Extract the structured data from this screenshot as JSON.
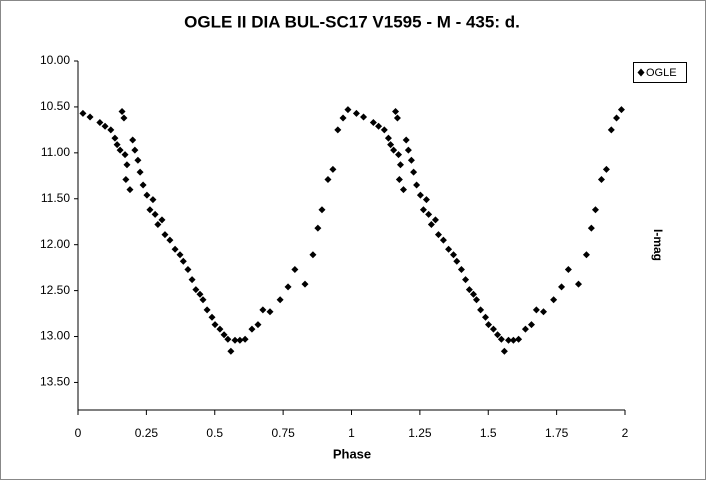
{
  "chart_data": {
    "type": "scatter",
    "title": "OGLE II DIA BUL-SC17 V1595 - M - 435: d.",
    "xlabel": "Phase",
    "ylabel": "I-mag",
    "xlim": [
      0,
      2
    ],
    "xticks": [
      0,
      0.25,
      0.5,
      0.75,
      1,
      1.25,
      1.5,
      1.75,
      2
    ],
    "ylim": [
      10,
      13.8
    ],
    "y_reversed": true,
    "yticks": [
      {
        "value": 10,
        "label": "10.00"
      },
      {
        "value": 10.5,
        "label": "10.50"
      },
      {
        "value": 11,
        "label": "11.00"
      },
      {
        "value": 11.5,
        "label": "11.50"
      },
      {
        "value": 12,
        "label": "12.00"
      },
      {
        "value": 12.5,
        "label": "12.50"
      },
      {
        "value": 13,
        "label": "13.00"
      },
      {
        "value": 13.5,
        "label": "13.50"
      }
    ],
    "legend": "top-right",
    "x": [
      0.018,
      0.044,
      0.08,
      0.099,
      0.12,
      0.135,
      0.143,
      0.154,
      0.161,
      0.168,
      0.172,
      0.179,
      0.175,
      0.19,
      0.2,
      0.208,
      0.219,
      0.227,
      0.238,
      0.252,
      0.263,
      0.274,
      0.282,
      0.292,
      0.307,
      0.318,
      0.336,
      0.355,
      0.373,
      0.385,
      0.402,
      0.417,
      0.431,
      0.446,
      0.457,
      0.472,
      0.49,
      0.501,
      0.519,
      0.534,
      0.548,
      0.559,
      0.574,
      0.592,
      0.611,
      0.636,
      0.658,
      0.676,
      0.702,
      0.739,
      0.768,
      0.793,
      0.83,
      0.859,
      0.877,
      0.892,
      0.914,
      0.932,
      0.95,
      0.969,
      0.987,
      1.018,
      1.044,
      1.08,
      1.099,
      1.12,
      1.135,
      1.143,
      1.154,
      1.161,
      1.168,
      1.172,
      1.179,
      1.175,
      1.19,
      1.2,
      1.208,
      1.219,
      1.227,
      1.238,
      1.252,
      1.263,
      1.274,
      1.282,
      1.292,
      1.307,
      1.318,
      1.336,
      1.355,
      1.373,
      1.385,
      1.402,
      1.417,
      1.431,
      1.446,
      1.457,
      1.472,
      1.49,
      1.501,
      1.519,
      1.534,
      1.548,
      1.559,
      1.574,
      1.592,
      1.611,
      1.636,
      1.658,
      1.676,
      1.702,
      1.739,
      1.768,
      1.793,
      1.83,
      1.859,
      1.877,
      1.892,
      1.914,
      1.932,
      1.95,
      1.969,
      1.987
    ],
    "series": [
      {
        "name": "OGLE",
        "color": "#000000",
        "values": [
          10.57,
          10.61,
          10.67,
          10.71,
          10.75,
          10.84,
          10.91,
          10.97,
          10.55,
          10.62,
          11.02,
          11.13,
          11.29,
          11.4,
          10.86,
          10.97,
          11.08,
          11.21,
          11.35,
          11.46,
          11.62,
          11.51,
          11.67,
          11.78,
          11.73,
          11.89,
          11.95,
          12.05,
          12.11,
          12.18,
          12.27,
          12.38,
          12.49,
          12.54,
          12.6,
          12.71,
          12.79,
          12.87,
          12.92,
          12.98,
          13.03,
          13.16,
          13.04,
          13.04,
          13.03,
          12.92,
          12.87,
          12.71,
          12.73,
          12.6,
          12.46,
          12.27,
          12.43,
          12.11,
          11.82,
          11.62,
          11.29,
          11.18,
          10.75,
          10.62,
          10.53,
          10.57,
          10.61,
          10.67,
          10.71,
          10.75,
          10.84,
          10.91,
          10.97,
          10.55,
          10.62,
          11.02,
          11.13,
          11.29,
          11.4,
          10.86,
          10.97,
          11.08,
          11.21,
          11.35,
          11.46,
          11.62,
          11.51,
          11.67,
          11.78,
          11.73,
          11.89,
          11.95,
          12.05,
          12.11,
          12.18,
          12.27,
          12.38,
          12.49,
          12.54,
          12.6,
          12.71,
          12.79,
          12.87,
          12.92,
          12.98,
          13.03,
          13.16,
          13.04,
          13.04,
          13.03,
          12.92,
          12.87,
          12.71,
          12.73,
          12.6,
          12.46,
          12.27,
          12.43,
          12.11,
          11.82,
          11.62,
          11.29,
          11.18,
          10.75,
          10.62,
          10.53
        ]
      }
    ]
  }
}
